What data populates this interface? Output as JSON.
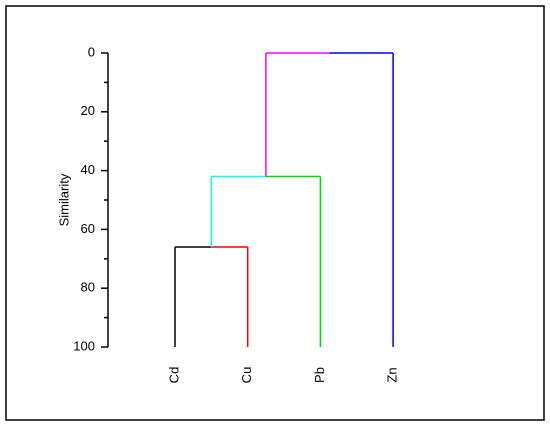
{
  "chart_data": {
    "type": "dendrogram",
    "y_label": "Similarity",
    "categories": [
      "Cd",
      "Cu",
      "Pb",
      "Zn"
    ],
    "leaf_colors": [
      "#000000",
      "#ff0000",
      "#00dd00",
      "#0000ff"
    ],
    "merges": [
      {
        "children": [
          0,
          1
        ],
        "value": 66,
        "color": "#00ffff"
      },
      {
        "children": [
          4,
          2
        ],
        "value": 42,
        "color": "#ff00ff"
      },
      {
        "children": [
          5,
          3
        ],
        "value": 0
      }
    ],
    "ylim": [
      0,
      100
    ],
    "inverted": true,
    "yticks": [
      0,
      20,
      40,
      60,
      80,
      100
    ],
    "minor_yticks": [
      10,
      30,
      50,
      70,
      90
    ]
  }
}
